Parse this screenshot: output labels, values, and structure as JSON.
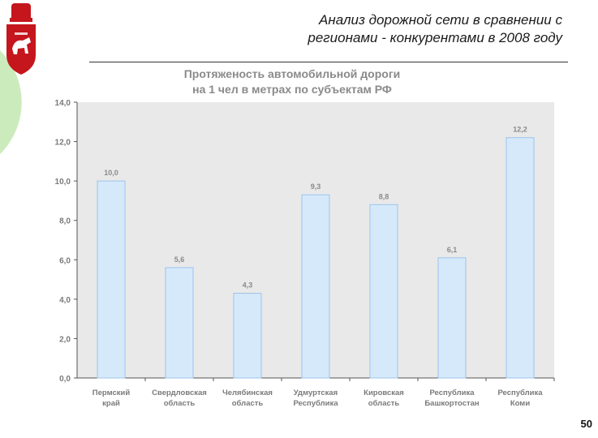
{
  "slide": {
    "title_line1": "Анализ дорожной сети в сравнении с",
    "title_line2": "регионами - конкурентами в 2008 году",
    "page_number": "50"
  },
  "chart_data": {
    "type": "bar",
    "title_line1": "Протяженость автомобильной дороги",
    "title_line2": "на 1 чел в метрах по субъектам РФ",
    "categories": [
      [
        "Пермский",
        "край"
      ],
      [
        "Свердловская",
        "область"
      ],
      [
        "Челябинская",
        "область"
      ],
      [
        "Удмуртская",
        "Республика"
      ],
      [
        "Кировская",
        "область"
      ],
      [
        "Республика",
        "Башкортостан"
      ],
      [
        "Республика",
        "Коми"
      ]
    ],
    "values": [
      10.0,
      5.6,
      4.3,
      9.3,
      8.8,
      6.1,
      12.2
    ],
    "value_labels": [
      "10,0",
      "5,6",
      "4,3",
      "9,3",
      "8,8",
      "6,1",
      "12,2"
    ],
    "yticks": [
      "0,0",
      "2,0",
      "4,0",
      "6,0",
      "8,0",
      "10,0",
      "12,0",
      "14,0"
    ],
    "ylim": [
      0,
      14
    ],
    "ystep": 2,
    "bar_color": "#d6e9fb",
    "bar_edge": "#9cc4ec",
    "plot_bg": "#e9e9e9",
    "grid": false
  },
  "colors": {
    "emblem_red": "#c4161c",
    "accent_green": "#8ed36a"
  }
}
